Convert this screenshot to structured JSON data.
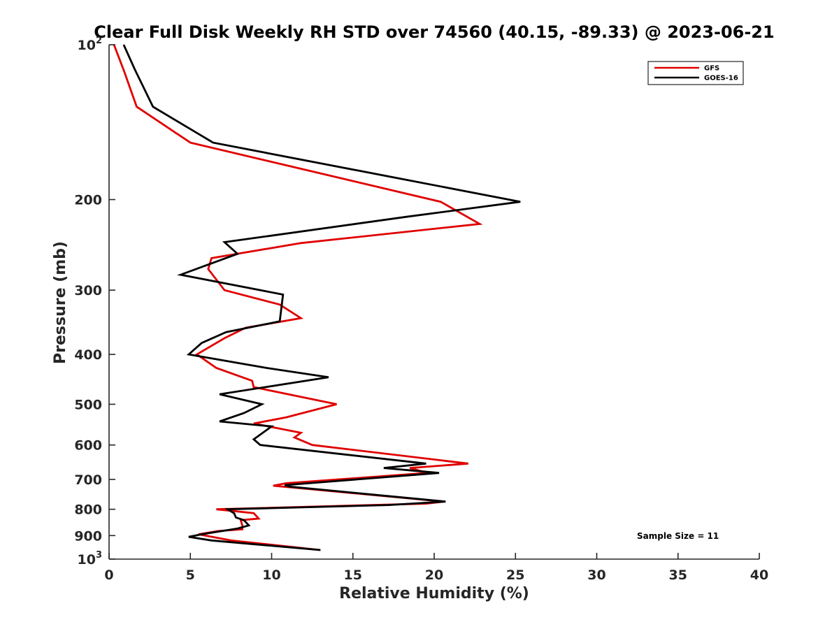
{
  "chart_data": {
    "type": "line",
    "title": "Clear Full Disk Weekly RH STD over 74560 (40.15, -89.33) @ 2023-06-21",
    "xlabel": "Relative Humidity (%)",
    "ylabel": "Pressure (mb)",
    "xlim": [
      0,
      40
    ],
    "ylim": [
      100,
      1000
    ],
    "y_scale": "log",
    "y_reversed": true,
    "xticks": [
      0,
      5,
      10,
      15,
      20,
      25,
      30,
      35,
      40
    ],
    "xtick_labels": [
      "0",
      "5",
      "10",
      "15",
      "20",
      "25",
      "30",
      "35",
      "40"
    ],
    "yticks": [
      {
        "value": 100,
        "base": "10",
        "exp": "2"
      },
      {
        "value": 200,
        "label": "200"
      },
      {
        "value": 300,
        "label": "300"
      },
      {
        "value": 400,
        "label": "400"
      },
      {
        "value": 500,
        "label": "500"
      },
      {
        "value": 600,
        "label": "600"
      },
      {
        "value": 700,
        "label": "700"
      },
      {
        "value": 800,
        "label": "800"
      },
      {
        "value": 900,
        "label": "900"
      },
      {
        "value": 1000,
        "base": "10",
        "exp": "3"
      }
    ],
    "grid": false,
    "legend_position": "top-right",
    "annotation": "Sample Size = 11",
    "series": [
      {
        "name": "GFS",
        "color": "#e00000",
        "points": [
          [
            0.3,
            100
          ],
          [
            0.9,
            112
          ],
          [
            1.7,
            132
          ],
          [
            5.0,
            155
          ],
          [
            20.4,
            202
          ],
          [
            22.8,
            223
          ],
          [
            11.8,
            243
          ],
          [
            6.3,
            260
          ],
          [
            6.1,
            273
          ],
          [
            7.1,
            300
          ],
          [
            10.5,
            320
          ],
          [
            11.8,
            340
          ],
          [
            8.4,
            355
          ],
          [
            7.1,
            372
          ],
          [
            5.4,
            400
          ],
          [
            6.6,
            425
          ],
          [
            8.8,
            450
          ],
          [
            8.9,
            463
          ],
          [
            14.0,
            500
          ],
          [
            10.9,
            530
          ],
          [
            8.9,
            545
          ],
          [
            11.8,
            568
          ],
          [
            11.4,
            580
          ],
          [
            12.5,
            600
          ],
          [
            22.1,
            652
          ],
          [
            18.5,
            665
          ],
          [
            19.6,
            680
          ],
          [
            10.9,
            712
          ],
          [
            10.1,
            720
          ],
          [
            20.6,
            773
          ],
          [
            19.5,
            780
          ],
          [
            6.6,
            800
          ],
          [
            8.9,
            814
          ],
          [
            9.2,
            834
          ],
          [
            8.1,
            840
          ],
          [
            8.2,
            860
          ],
          [
            8.2,
            875
          ],
          [
            6.7,
            882
          ],
          [
            5.5,
            895
          ],
          [
            7.5,
            920
          ],
          [
            13.0,
            960
          ]
        ]
      },
      {
        "name": "GOES-16",
        "color": "#000000",
        "points": [
          [
            0.9,
            100
          ],
          [
            1.6,
            112
          ],
          [
            2.7,
            132
          ],
          [
            6.4,
            155
          ],
          [
            25.3,
            202
          ],
          [
            18.3,
            216
          ],
          [
            7.1,
            242
          ],
          [
            7.9,
            255
          ],
          [
            4.4,
            280
          ],
          [
            10.7,
            306
          ],
          [
            10.5,
            345
          ],
          [
            7.2,
            362
          ],
          [
            5.7,
            380
          ],
          [
            4.9,
            400
          ],
          [
            9.7,
            425
          ],
          [
            13.5,
            443
          ],
          [
            6.8,
            478
          ],
          [
            9.4,
            500
          ],
          [
            8.3,
            520
          ],
          [
            6.8,
            540
          ],
          [
            10.0,
            552
          ],
          [
            8.9,
            585
          ],
          [
            9.3,
            600
          ],
          [
            19.5,
            652
          ],
          [
            16.9,
            665
          ],
          [
            20.3,
            680
          ],
          [
            10.8,
            718
          ],
          [
            11.1,
            723
          ],
          [
            20.7,
            773
          ],
          [
            17.2,
            785
          ],
          [
            7.3,
            800
          ],
          [
            7.7,
            815
          ],
          [
            7.8,
            830
          ],
          [
            8.3,
            840
          ],
          [
            8.6,
            860
          ],
          [
            7.9,
            872
          ],
          [
            5.7,
            895
          ],
          [
            4.9,
            905
          ],
          [
            6.3,
            920
          ],
          [
            13.0,
            960
          ]
        ]
      }
    ]
  }
}
